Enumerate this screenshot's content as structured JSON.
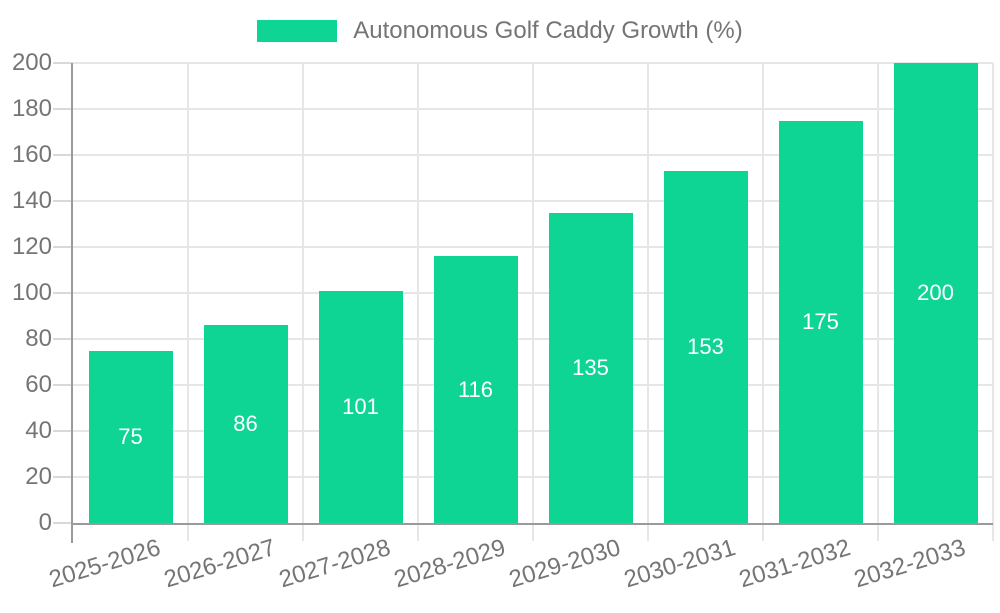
{
  "chart_data": {
    "type": "bar",
    "title": "Autonomous Golf Caddy Growth (%)",
    "categories": [
      "2025-2026",
      "2026-2027",
      "2027-2028",
      "2028-2029",
      "2029-2030",
      "2030-2031",
      "2031-2032",
      "2032-2033"
    ],
    "values": [
      75,
      86,
      101,
      116,
      135,
      153,
      175,
      200
    ],
    "yticks": [
      0,
      20,
      40,
      60,
      80,
      100,
      120,
      140,
      160,
      180,
      200
    ],
    "ylim": [
      0,
      200
    ],
    "xlabel": "",
    "ylabel": "",
    "grid": true,
    "legend_position": "top",
    "value_labels": [
      "75",
      "86",
      "101",
      "116",
      "135",
      "153",
      "175",
      "200"
    ]
  },
  "theme": {
    "bar_color": "#0ed593",
    "grid_color": "#e6e6e6",
    "axis_color": "#9a9a9a",
    "tick_color": "#d9d9d9",
    "label_color": "#757575",
    "value_label_color": "#ffffff",
    "background": "#ffffff"
  }
}
